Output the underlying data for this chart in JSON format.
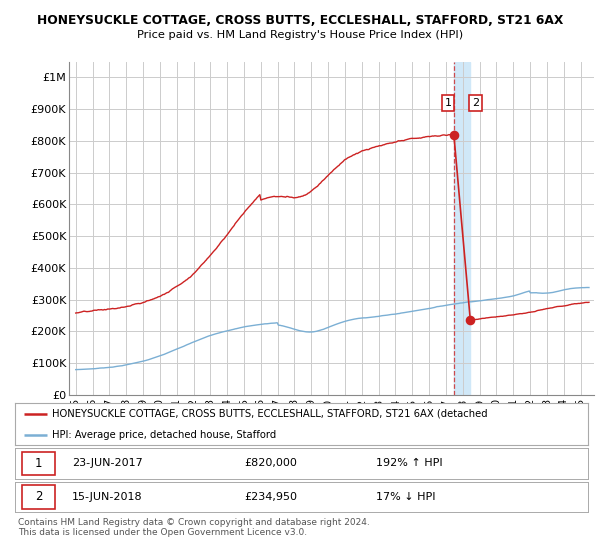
{
  "title": "HONEYSUCKLE COTTAGE, CROSS BUTTS, ECCLESHALL, STAFFORD, ST21 6AX",
  "subtitle": "Price paid vs. HM Land Registry's House Price Index (HPI)",
  "ylabel_ticks": [
    "£0",
    "£100K",
    "£200K",
    "£300K",
    "£400K",
    "£500K",
    "£600K",
    "£700K",
    "£800K",
    "£900K",
    "£1M"
  ],
  "ytick_values": [
    0,
    100000,
    200000,
    300000,
    400000,
    500000,
    600000,
    700000,
    800000,
    900000,
    1000000
  ],
  "ylim": [
    0,
    1050000
  ],
  "hpi_color": "#7BAFD4",
  "price_color": "#cc2222",
  "dashed_color": "#cc2222",
  "band_color": "#d0e8f8",
  "point1_year": 2017.47,
  "point1_price": 820000,
  "point2_year": 2018.45,
  "point2_price": 234950,
  "point1_date": "23-JUN-2017",
  "point2_date": "15-JUN-2018",
  "point1_hpi_pct": "192% ↑ HPI",
  "point2_hpi_pct": "17% ↓ HPI",
  "legend_line1": "HONEYSUCKLE COTTAGE, CROSS BUTTS, ECCLESHALL, STAFFORD, ST21 6AX (detached",
  "legend_line2": "HPI: Average price, detached house, Stafford",
  "footer": "Contains HM Land Registry data © Crown copyright and database right 2024.\nThis data is licensed under the Open Government Licence v3.0.",
  "background_color": "#ffffff",
  "grid_color": "#cccccc",
  "xstart": 1995,
  "xend": 2025
}
